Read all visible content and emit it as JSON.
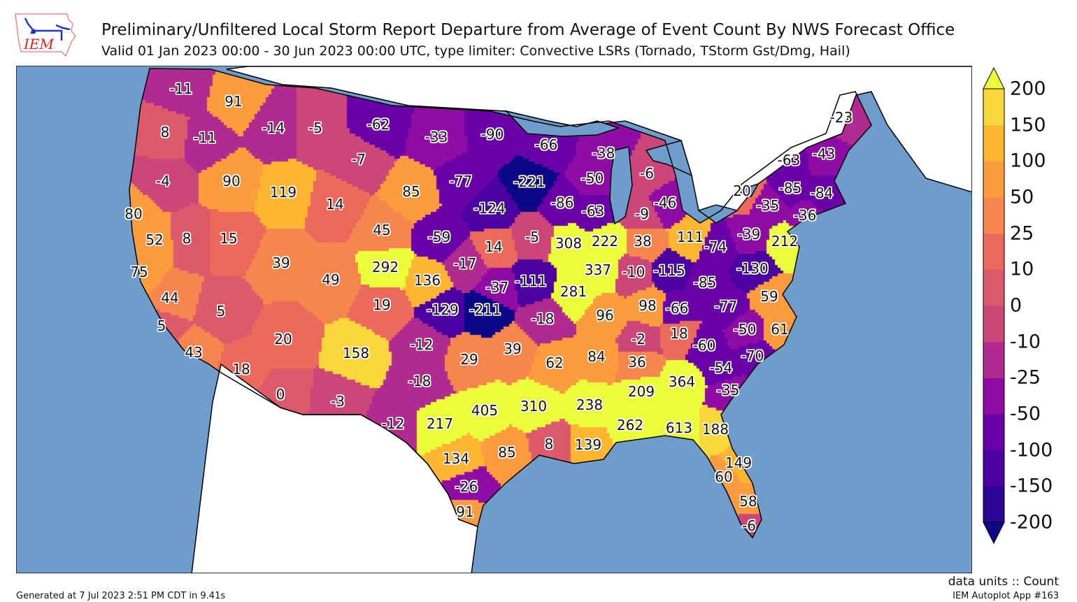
{
  "header": {
    "logo_text": "IEM",
    "title": "Preliminary/Unfiltered Local Storm Report Departure from Average of Event Count By NWS Forecast Office",
    "subtitle": "Valid 01 Jan 2023 00:00 - 30 Jun 2023 00:00 UTC, type limiter: Convective LSRs (Tornado, TStorm Gst/Dmg, Hail)"
  },
  "colorbar": {
    "ticks": [
      "200",
      "150",
      "100",
      "50",
      "25",
      "10",
      "0",
      "-10",
      "-25",
      "-50",
      "-100",
      "-150",
      "-200"
    ],
    "levels": [
      -200,
      -150,
      -100,
      -50,
      -25,
      -10,
      0,
      10,
      25,
      50,
      100,
      150,
      200
    ],
    "colors": [
      "#0d0887",
      "#2c0594",
      "#4c02a1",
      "#6a00a8",
      "#8f0da4",
      "#b12a90",
      "#cc4778",
      "#dd5a6b",
      "#ec6a5b",
      "#f7864e",
      "#fd9b3f",
      "#fdb532",
      "#f9d63b",
      "#ebfc3a"
    ],
    "ocean": "#6f9dcb",
    "land": "#ffffff"
  },
  "office_values": [
    -11,
    91,
    8,
    -11,
    -14,
    -5,
    -62,
    -7,
    -4,
    90,
    119,
    14,
    45,
    85,
    80,
    52,
    8,
    15,
    39,
    49,
    292,
    136,
    19,
    75,
    44,
    5,
    5,
    -33,
    -90,
    -66,
    -38,
    -6,
    -77,
    -221,
    -50,
    -124,
    -86,
    -63,
    -9,
    -46,
    -59,
    14,
    -5,
    308,
    222,
    38,
    111,
    -17,
    337,
    -10,
    -115,
    -37,
    -111,
    281,
    -129,
    -211,
    -18,
    96,
    98,
    -66,
    -74,
    -39,
    212,
    -130,
    -85,
    -77,
    59,
    -50,
    61,
    18,
    -2,
    -60,
    -70,
    -54,
    -35,
    36,
    364,
    209,
    84,
    -12,
    29,
    39,
    62,
    -18,
    20,
    43,
    18,
    0,
    158,
    -3,
    405,
    310,
    238,
    262,
    613,
    188,
    217,
    -12,
    8,
    139,
    134,
    85,
    149,
    60,
    58,
    -26,
    91,
    -6,
    -23,
    -63,
    -43,
    20,
    -85,
    -84,
    -35,
    -36
  ],
  "footer": {
    "units": "data units :: Count",
    "generated": "Generated at 7 Jul 2023 2:51 PM CDT in 9.41s",
    "app": "IEM Autoplot App #163"
  }
}
